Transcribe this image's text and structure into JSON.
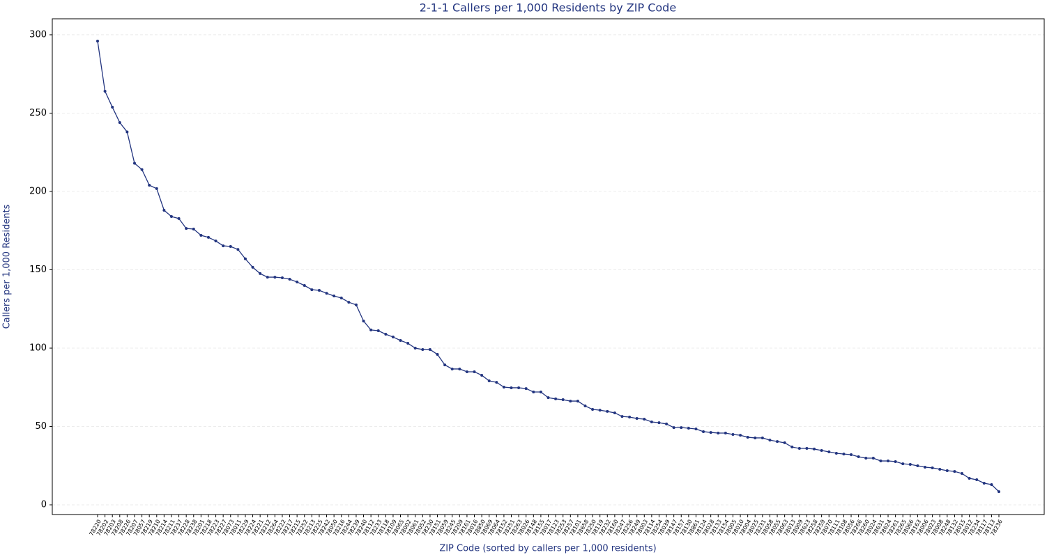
{
  "chart_data": {
    "type": "line",
    "title": "2-1-1 Callers per 1,000 Residents by ZIP Code",
    "xlabel": "ZIP Code (sorted by callers per 1,000 residents)",
    "ylabel": "Callers per 1,000 Residents",
    "categories": [
      "78220",
      "78202",
      "78203",
      "78208",
      "78226",
      "78207",
      "78057",
      "78219",
      "78210",
      "78214",
      "78211",
      "78237",
      "78228",
      "78238",
      "78201",
      "78218",
      "78223",
      "78227",
      "78073",
      "78011",
      "78229",
      "78224",
      "78221",
      "78212",
      "78264",
      "78222",
      "78217",
      "78215",
      "78252",
      "78213",
      "78225",
      "78242",
      "78050",
      "78216",
      "78244",
      "78239",
      "78240",
      "78112",
      "78233",
      "78118",
      "78109",
      "78065",
      "78002",
      "78061",
      "78052",
      "78230",
      "78151",
      "78059",
      "78245",
      "78209",
      "78161",
      "78016",
      "78850",
      "78069",
      "78064",
      "78152",
      "78251",
      "78263",
      "78026",
      "78148",
      "78155",
      "78017",
      "78123",
      "78253",
      "78257",
      "78101",
      "78658",
      "78250",
      "78119",
      "78232",
      "78160",
      "78247",
      "78256",
      "78249",
      "78003",
      "78114",
      "78254",
      "78039",
      "78147",
      "78157",
      "78130",
      "78861",
      "78124",
      "78028",
      "78133",
      "78154",
      "78005",
      "78010",
      "78004",
      "78025",
      "78231",
      "78058",
      "78055",
      "78063",
      "78013",
      "78009",
      "78623",
      "78258",
      "78259",
      "78070",
      "78111",
      "78108",
      "78056",
      "78266",
      "78260",
      "78024",
      "78631",
      "78624",
      "78261",
      "78265",
      "78066",
      "78163",
      "78006",
      "78023",
      "78008",
      "78248",
      "78132",
      "78015",
      "78012",
      "78234",
      "78117",
      "78113",
      "78236"
    ],
    "series": [
      {
        "name": "Callers per 1,000 Residents",
        "color": "#22347f",
        "values": [
          296,
          264,
          253.8,
          244,
          238,
          218,
          214,
          204,
          201.8,
          188,
          184,
          182.7,
          176.4,
          176,
          172,
          170.7,
          168.4,
          165.3,
          164.9,
          163,
          157,
          151.6,
          147.6,
          145.3,
          145.3,
          144.9,
          144,
          142.2,
          140,
          137.3,
          136.9,
          135,
          133.3,
          132,
          129.3,
          127.6,
          117.3,
          111.6,
          111.1,
          108.9,
          107.1,
          104.9,
          103.1,
          100,
          99.1,
          99.1,
          96,
          89.3,
          86.7,
          86.7,
          84.9,
          84.9,
          82.7,
          79.1,
          78.2,
          75.1,
          74.7,
          74.7,
          74.2,
          72,
          72,
          68.4,
          67.6,
          67.1,
          66.2,
          66.2,
          63.1,
          60.9,
          60.4,
          59.6,
          58.7,
          56.4,
          56,
          55.1,
          54.7,
          52.9,
          52.4,
          51.6,
          49.3,
          49.3,
          48.9,
          48.4,
          46.7,
          46.2,
          45.8,
          45.8,
          44.9,
          44.4,
          43.1,
          42.7,
          42.7,
          41.3,
          40.4,
          39.6,
          36.9,
          36,
          36,
          35.6,
          34.7,
          33.8,
          32.9,
          32.4,
          32,
          30.7,
          29.8,
          29.8,
          28,
          28,
          27.6,
          26.2,
          25.8,
          24.9,
          24,
          23.6,
          22.7,
          21.8,
          21.3,
          20,
          16.9,
          16,
          13.8,
          12.9,
          8.4
        ]
      }
    ],
    "ylim": [
      -6.2,
      310.2
    ],
    "yticks": [
      0,
      50,
      100,
      150,
      200,
      250,
      300
    ],
    "grid": true
  }
}
